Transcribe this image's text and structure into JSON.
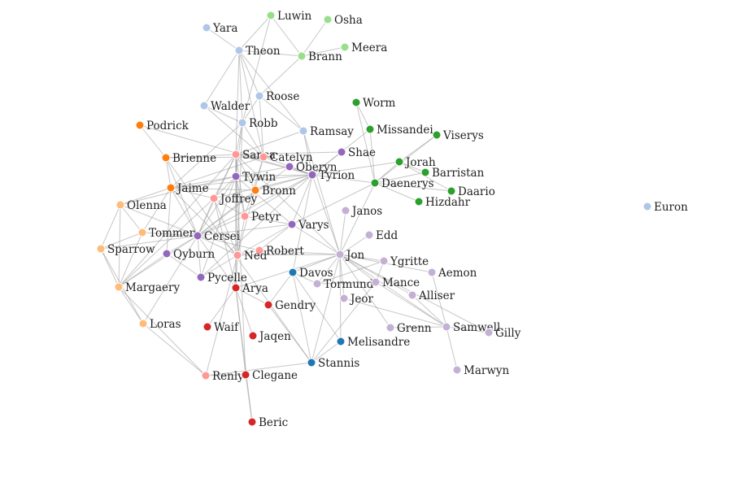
{
  "palette": {
    "lightblue": "#aec7e8",
    "lightgreen": "#98df8a",
    "green": "#2ca02c",
    "orange": "#ff7f0e",
    "lightorange": "#ffbb78",
    "purple": "#9467bd",
    "lightpurple": "#c5b0d5",
    "pink": "#ff9896",
    "red": "#d62728",
    "blue": "#1f77b4"
  },
  "nodes": [
    {
      "id": "Yara",
      "group": "lightblue"
    },
    {
      "id": "Theon",
      "group": "lightblue"
    },
    {
      "id": "Luwin",
      "group": "lightgreen"
    },
    {
      "id": "Osha",
      "group": "lightgreen"
    },
    {
      "id": "Brann",
      "group": "lightgreen"
    },
    {
      "id": "Meera",
      "group": "lightgreen"
    },
    {
      "id": "Roose",
      "group": "lightblue"
    },
    {
      "id": "Walder",
      "group": "lightblue"
    },
    {
      "id": "Robb",
      "group": "lightblue"
    },
    {
      "id": "Ramsay",
      "group": "lightblue"
    },
    {
      "id": "Worm",
      "group": "green"
    },
    {
      "id": "Missandei",
      "group": "green"
    },
    {
      "id": "Viserys",
      "group": "green"
    },
    {
      "id": "Podrick",
      "group": "orange"
    },
    {
      "id": "Brienne",
      "group": "orange"
    },
    {
      "id": "Sansa",
      "group": "pink"
    },
    {
      "id": "Catelyn",
      "group": "pink"
    },
    {
      "id": "Shae",
      "group": "purple"
    },
    {
      "id": "Oberyn",
      "group": "purple"
    },
    {
      "id": "Tyrion",
      "group": "purple"
    },
    {
      "id": "Jorah",
      "group": "green"
    },
    {
      "id": "Barristan",
      "group": "green"
    },
    {
      "id": "Tywin",
      "group": "purple"
    },
    {
      "id": "Daenerys",
      "group": "green"
    },
    {
      "id": "Daario",
      "group": "green"
    },
    {
      "id": "Jaime",
      "group": "orange"
    },
    {
      "id": "Bronn",
      "group": "orange"
    },
    {
      "id": "Joffrey",
      "group": "pink"
    },
    {
      "id": "Hizdahr",
      "group": "green"
    },
    {
      "id": "Euron",
      "group": "lightblue"
    },
    {
      "id": "Olenna",
      "group": "lightorange"
    },
    {
      "id": "Janos",
      "group": "lightpurple"
    },
    {
      "id": "Petyr",
      "group": "pink"
    },
    {
      "id": "Varys",
      "group": "purple"
    },
    {
      "id": "Tommen",
      "group": "lightorange"
    },
    {
      "id": "Cersei",
      "group": "purple"
    },
    {
      "id": "Edd",
      "group": "lightpurple"
    },
    {
      "id": "Sparrow",
      "group": "lightorange"
    },
    {
      "id": "Robert",
      "group": "pink"
    },
    {
      "id": "Qyburn",
      "group": "purple"
    },
    {
      "id": "Ned",
      "group": "pink"
    },
    {
      "id": "Jon",
      "group": "lightpurple"
    },
    {
      "id": "Ygritte",
      "group": "lightpurple"
    },
    {
      "id": "Davos",
      "group": "blue"
    },
    {
      "id": "Aemon",
      "group": "lightpurple"
    },
    {
      "id": "Pycelle",
      "group": "purple"
    },
    {
      "id": "Tormund",
      "group": "lightpurple"
    },
    {
      "id": "Mance",
      "group": "lightpurple"
    },
    {
      "id": "Margaery",
      "group": "lightorange"
    },
    {
      "id": "Arya",
      "group": "red"
    },
    {
      "id": "Alliser",
      "group": "lightpurple"
    },
    {
      "id": "Jeor",
      "group": "lightpurple"
    },
    {
      "id": "Gendry",
      "group": "red"
    },
    {
      "id": "Loras",
      "group": "lightorange"
    },
    {
      "id": "Waif",
      "group": "red"
    },
    {
      "id": "Grenn",
      "group": "lightpurple"
    },
    {
      "id": "Samwell",
      "group": "lightpurple"
    },
    {
      "id": "Gilly",
      "group": "lightpurple"
    },
    {
      "id": "Jaqen",
      "group": "red"
    },
    {
      "id": "Melisandre",
      "group": "blue"
    },
    {
      "id": "Stannis",
      "group": "blue"
    },
    {
      "id": "Renly",
      "group": "pink"
    },
    {
      "id": "Clegane",
      "group": "red"
    },
    {
      "id": "Marwyn",
      "group": "lightpurple"
    },
    {
      "id": "Beric",
      "group": "red"
    }
  ],
  "links": [
    [
      "Yara",
      "Theon"
    ],
    [
      "Theon",
      "Luwin"
    ],
    [
      "Theon",
      "Brann"
    ],
    [
      "Theon",
      "Roose"
    ],
    [
      "Theon",
      "Robb"
    ],
    [
      "Theon",
      "Ramsay"
    ],
    [
      "Theon",
      "Sansa"
    ],
    [
      "Theon",
      "Catelyn"
    ],
    [
      "Theon",
      "Walder"
    ],
    [
      "Luwin",
      "Brann"
    ],
    [
      "Osha",
      "Brann"
    ],
    [
      "Meera",
      "Brann"
    ],
    [
      "Brann",
      "Roose"
    ],
    [
      "Luwin",
      "Robb"
    ],
    [
      "Roose",
      "Robb"
    ],
    [
      "Roose",
      "Ramsay"
    ],
    [
      "Roose",
      "Catelyn"
    ],
    [
      "Walder",
      "Robb"
    ],
    [
      "Walder",
      "Catelyn"
    ],
    [
      "Robb",
      "Catelyn"
    ],
    [
      "Robb",
      "Sansa"
    ],
    [
      "Robb",
      "Tywin"
    ],
    [
      "Robb",
      "Jaime"
    ],
    [
      "Robb",
      "Ned"
    ],
    [
      "Ramsay",
      "Sansa"
    ],
    [
      "Ramsay",
      "Tyrion"
    ],
    [
      "Ramsay",
      "Jon"
    ],
    [
      "Worm",
      "Missandei"
    ],
    [
      "Worm",
      "Daenerys"
    ],
    [
      "Missandei",
      "Daenerys"
    ],
    [
      "Missandei",
      "Tyrion"
    ],
    [
      "Viserys",
      "Daenerys"
    ],
    [
      "Viserys",
      "Jorah"
    ],
    [
      "Jorah",
      "Daenerys"
    ],
    [
      "Jorah",
      "Barristan"
    ],
    [
      "Jorah",
      "Tyrion"
    ],
    [
      "Barristan",
      "Daenerys"
    ],
    [
      "Daario",
      "Daenerys"
    ],
    [
      "Hizdahr",
      "Daenerys"
    ],
    [
      "Daenerys",
      "Tyrion"
    ],
    [
      "Daenerys",
      "Jon"
    ],
    [
      "Daenerys",
      "Varys"
    ],
    [
      "Daario",
      "Jorah"
    ],
    [
      "Podrick",
      "Brienne"
    ],
    [
      "Podrick",
      "Tyrion"
    ],
    [
      "Brienne",
      "Jaime"
    ],
    [
      "Brienne",
      "Sansa"
    ],
    [
      "Brienne",
      "Catelyn"
    ],
    [
      "Brienne",
      "Cersei"
    ],
    [
      "Brienne",
      "Stannis"
    ],
    [
      "Sansa",
      "Catelyn"
    ],
    [
      "Sansa",
      "Tyrion"
    ],
    [
      "Sansa",
      "Tywin"
    ],
    [
      "Sansa",
      "Joffrey"
    ],
    [
      "Sansa",
      "Petyr"
    ],
    [
      "Sansa",
      "Cersei"
    ],
    [
      "Sansa",
      "Ned"
    ],
    [
      "Sansa",
      "Arya"
    ],
    [
      "Sansa",
      "Jon"
    ],
    [
      "Sansa",
      "Margaery"
    ],
    [
      "Sansa",
      "Bronn"
    ],
    [
      "Catelyn",
      "Ned"
    ],
    [
      "Catelyn",
      "Jaime"
    ],
    [
      "Catelyn",
      "Tyrion"
    ],
    [
      "Catelyn",
      "Petyr"
    ],
    [
      "Shae",
      "Tyrion"
    ],
    [
      "Shae",
      "Sansa"
    ],
    [
      "Oberyn",
      "Tyrion"
    ],
    [
      "Oberyn",
      "Tywin"
    ],
    [
      "Oberyn",
      "Cersei"
    ],
    [
      "Tyrion",
      "Tywin"
    ],
    [
      "Tyrion",
      "Jaime"
    ],
    [
      "Tyrion",
      "Bronn"
    ],
    [
      "Tyrion",
      "Joffrey"
    ],
    [
      "Tyrion",
      "Cersei"
    ],
    [
      "Tyrion",
      "Varys"
    ],
    [
      "Tyrion",
      "Jon"
    ],
    [
      "Tyrion",
      "Petyr"
    ],
    [
      "Tyrion",
      "Pycelle"
    ],
    [
      "Tyrion",
      "Davos"
    ],
    [
      "Tywin",
      "Jaime"
    ],
    [
      "Tywin",
      "Cersei"
    ],
    [
      "Tywin",
      "Joffrey"
    ],
    [
      "Tywin",
      "Arya"
    ],
    [
      "Tywin",
      "Pycelle"
    ],
    [
      "Tywin",
      "Petyr"
    ],
    [
      "Tywin",
      "Varys"
    ],
    [
      "Tywin",
      "Olenna"
    ],
    [
      "Jaime",
      "Cersei"
    ],
    [
      "Jaime",
      "Bronn"
    ],
    [
      "Jaime",
      "Joffrey"
    ],
    [
      "Jaime",
      "Olenna"
    ],
    [
      "Jaime",
      "Tommen"
    ],
    [
      "Jaime",
      "Qyburn"
    ],
    [
      "Jaime",
      "Ned"
    ],
    [
      "Bronn",
      "Cersei"
    ],
    [
      "Joffrey",
      "Cersei"
    ],
    [
      "Joffrey",
      "Margaery"
    ],
    [
      "Joffrey",
      "Ned"
    ],
    [
      "Joffrey",
      "Arya"
    ],
    [
      "Joffrey",
      "Petyr"
    ],
    [
      "Olenna",
      "Margaery"
    ],
    [
      "Olenna",
      "Cersei"
    ],
    [
      "Olenna",
      "Tommen"
    ],
    [
      "Olenna",
      "Sparrow"
    ],
    [
      "Janos",
      "Jon"
    ],
    [
      "Petyr",
      "Varys"
    ],
    [
      "Petyr",
      "Cersei"
    ],
    [
      "Petyr",
      "Ned"
    ],
    [
      "Varys",
      "Cersei"
    ],
    [
      "Varys",
      "Ned"
    ],
    [
      "Varys",
      "Jon"
    ],
    [
      "Tommen",
      "Cersei"
    ],
    [
      "Tommen",
      "Margaery"
    ],
    [
      "Tommen",
      "Sparrow"
    ],
    [
      "Cersei",
      "Sparrow"
    ],
    [
      "Cersei",
      "Margaery"
    ],
    [
      "Cersei",
      "Qyburn"
    ],
    [
      "Cersei",
      "Robert"
    ],
    [
      "Cersei",
      "Ned"
    ],
    [
      "Cersei",
      "Pycelle"
    ],
    [
      "Cersei",
      "Loras"
    ],
    [
      "Cersei",
      "Arya"
    ],
    [
      "Edd",
      "Jon"
    ],
    [
      "Sparrow",
      "Margaery"
    ],
    [
      "Sparrow",
      "Loras"
    ],
    [
      "Robert",
      "Ned"
    ],
    [
      "Robert",
      "Jon"
    ],
    [
      "Robert",
      "Varys"
    ],
    [
      "Qyburn",
      "Margaery"
    ],
    [
      "Qyburn",
      "Pycelle"
    ],
    [
      "Ned",
      "Arya"
    ],
    [
      "Ned",
      "Pycelle"
    ],
    [
      "Ned",
      "Jon"
    ],
    [
      "Ned",
      "Renly"
    ],
    [
      "Jon",
      "Ygritte"
    ],
    [
      "Jon",
      "Davos"
    ],
    [
      "Jon",
      "Aemon"
    ],
    [
      "Jon",
      "Tormund"
    ],
    [
      "Jon",
      "Mance"
    ],
    [
      "Jon",
      "Alliser"
    ],
    [
      "Jon",
      "Jeor"
    ],
    [
      "Jon",
      "Samwell"
    ],
    [
      "Jon",
      "Melisandre"
    ],
    [
      "Jon",
      "Stannis"
    ],
    [
      "Jon",
      "Grenn"
    ],
    [
      "Jon",
      "Gilly"
    ],
    [
      "Jon",
      "Arya"
    ],
    [
      "Ygritte",
      "Tormund"
    ],
    [
      "Ygritte",
      "Mance"
    ],
    [
      "Davos",
      "Melisandre"
    ],
    [
      "Davos",
      "Stannis"
    ],
    [
      "Davos",
      "Gendry"
    ],
    [
      "Davos",
      "Tormund"
    ],
    [
      "Aemon",
      "Samwell"
    ],
    [
      "Tormund",
      "Mance"
    ],
    [
      "Mance",
      "Samwell"
    ],
    [
      "Mance",
      "Stannis"
    ],
    [
      "Alliser",
      "Samwell"
    ],
    [
      "Jeor",
      "Samwell"
    ],
    [
      "Grenn",
      "Samwell"
    ],
    [
      "Samwell",
      "Gilly"
    ],
    [
      "Samwell",
      "Marwyn"
    ],
    [
      "Margaery",
      "Loras"
    ],
    [
      "Margaery",
      "Renly"
    ],
    [
      "Loras",
      "Renly"
    ],
    [
      "Arya",
      "Gendry"
    ],
    [
      "Arya",
      "Waif"
    ],
    [
      "Arya",
      "Jaqen"
    ],
    [
      "Arya",
      "Clegane"
    ],
    [
      "Arya",
      "Beric"
    ],
    [
      "Clegane",
      "Beric"
    ],
    [
      "Clegane",
      "Sansa"
    ],
    [
      "Clegane",
      "Renly"
    ],
    [
      "Melisandre",
      "Stannis"
    ],
    [
      "Stannis",
      "Renly"
    ],
    [
      "Stannis",
      "Gendry"
    ]
  ]
}
